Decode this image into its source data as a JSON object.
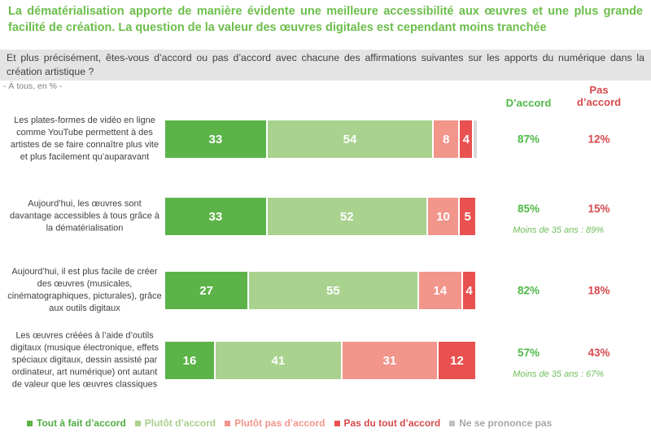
{
  "title": "La dématérialisation apporte de manière évidente une meilleure accessibilité aux œuvres et une plus grande facilité de création. La question de la valeur des œuvres digitales est cependant moins tranchée",
  "question": "Et plus précisément, êtes-vous d’accord ou pas d’accord avec chacune des affirmations suivantes sur les apports du numérique dans la création artistique ?",
  "base_note": "- À tous, en % -",
  "columns": {
    "agree": "D’accord",
    "disagree": "Pas d’accord"
  },
  "colors": {
    "title_green": "#6CBE4B",
    "agree_green": "#4FB848",
    "disagree_red": "#D6494C",
    "annotation_green": "#6FBE5B",
    "question_bg": "#E4E4E4",
    "label_gray": "#3F3F3F"
  },
  "chart_data": {
    "type": "bar",
    "orientation": "horizontal",
    "stacked": true,
    "unit": "%",
    "x_max": 100,
    "categories": [
      "Les plates-formes de vidéo en ligne comme YouTube permettent à des artistes de se faire connaître plus vite et plus facilement qu’auparavant",
      "Aujourd’hui, les œuvres sont davantage accessibles à tous grâce à la dématérialisation",
      "Aujourd’hui, il est plus facile de créer des œuvres (musicales, cinématographiques, picturales), grâce aux outils digitaux",
      "Les œuvres créées à l’aide d’outils digitaux (musique électronique, effets spéciaux digitaux, dessin assisté par ordinateur, art numérique) ont autant de valeur que les œuvres classiques"
    ],
    "series": [
      {
        "key": "tout-a-fait-d-accord",
        "name": "Tout à fait d’accord",
        "color": "#5CB348",
        "values": [
          33,
          33,
          27,
          16
        ]
      },
      {
        "key": "plutot-d-accord",
        "name": "Plutôt d’accord",
        "color": "#A9D28F",
        "values": [
          54,
          52,
          55,
          41
        ]
      },
      {
        "key": "plutot-pas-d-accord",
        "name": "Plutôt pas d’accord",
        "color": "#F2958B",
        "values": [
          8,
          10,
          14,
          31
        ]
      },
      {
        "key": "pas-du-tout-d-accord",
        "name": "Pas du tout d’accord",
        "color": "#E8514F",
        "values": [
          4,
          5,
          4,
          12
        ]
      },
      {
        "key": "ne-se-prononce-pas",
        "name": "Ne se prononce pas",
        "color": "#D9D9D9",
        "values": [
          1,
          0,
          0,
          0
        ],
        "show_value": false
      }
    ],
    "agree_totals": [
      "87%",
      "85%",
      "82%",
      "57%"
    ],
    "disagree_totals": [
      "12%",
      "15%",
      "18%",
      "43%"
    ],
    "annotations": [
      "",
      "Moins de 35 ans : 89%",
      "",
      "Moins de 35 ans : 67%"
    ]
  },
  "legend": {
    "items": [
      {
        "key": "tout-a-fait-d-accord",
        "label": "Tout à fait d’accord",
        "color": "#4FAE42",
        "swatch": "#5CB348"
      },
      {
        "key": "plutot-d-accord",
        "label": "Plutôt d’accord",
        "color": "#A9CE8E",
        "swatch": "#A9D28F"
      },
      {
        "key": "plutot-pas-d-accord",
        "label": "Plutôt pas d’accord",
        "color": "#F2958B",
        "swatch": "#F2958B"
      },
      {
        "key": "pas-du-tout-d-accord",
        "label": "Pas du tout d’accord",
        "color": "#D6494C",
        "swatch": "#E8514F"
      },
      {
        "key": "ne-se-prononce-pas",
        "label": "Ne se prononce pas",
        "color": "#A6A6A6",
        "swatch": "#BFBFBF"
      }
    ]
  }
}
